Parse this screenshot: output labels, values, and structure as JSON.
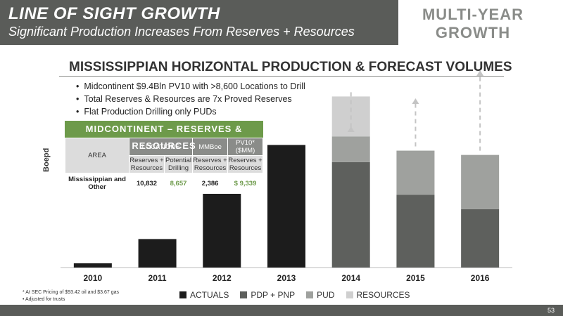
{
  "header": {
    "title": "LINE OF SIGHT GROWTH",
    "subtitle": "Significant Production Increases From Reserves + Resources",
    "right_title_line1": "MULTI-YEAR",
    "right_title_line2": "GROWTH"
  },
  "section": {
    "title": "MISSISSIPPIAN HORIZONTAL PRODUCTION & FORECAST VOLUMES",
    "bullets": [
      "Midcontinent $9.4Bln PV10 with >8,600 Locations to Drill",
      "Total Reserves & Resources are 7x Proved Reserves",
      "Flat Production Drilling only PUDs"
    ]
  },
  "midcon_table": {
    "title": "MIDCONTINENT – RESERVES & RESOURCES",
    "area_header": "AREA",
    "locations_header": "LOCATIONS",
    "mmboe_header": "MMBoe",
    "pv10_header": "PV10* ($MM)",
    "sub1": "Reserves + Resources",
    "sub2": "Potential Drilling",
    "sub3": "Reserves + Resources",
    "sub4": "Reserves + Resources",
    "row_label": "Mississippian and Other",
    "row_loc_res": "10,832",
    "row_loc_pot": "8,657",
    "row_mmboe": "2,386",
    "row_pv10": "$ 9,339"
  },
  "chart_data": {
    "type": "bar",
    "ylabel": "Boepd",
    "categories": [
      "2010",
      "2011",
      "2012",
      "2013",
      "2014",
      "2015",
      "2016"
    ],
    "series": [
      {
        "name": "ACTUALS",
        "color": "#1c1c1c",
        "values": [
          3,
          20,
          53,
          86,
          0,
          0,
          0
        ]
      },
      {
        "name": "PDP + PNP",
        "color": "#5e605d",
        "values": [
          0,
          0,
          0,
          0,
          74,
          51,
          41
        ]
      },
      {
        "name": "PUD",
        "color": "#9fa19e",
        "values": [
          0,
          0,
          0,
          0,
          18,
          31,
          38
        ]
      },
      {
        "name": "RESOURCES",
        "color": "#cfcfcf",
        "values": [
          0,
          0,
          0,
          0,
          28,
          0,
          0
        ]
      }
    ],
    "ylim": [
      0,
      100
    ],
    "arrows_above": [
      "2014",
      "2015",
      "2016"
    ],
    "legend_placement": "bottom"
  },
  "footnotes": [
    "* At SEC Pricing of $93.42 oil and $3.67 gas",
    "• Adjusted for trusts"
  ],
  "page_number": "53"
}
